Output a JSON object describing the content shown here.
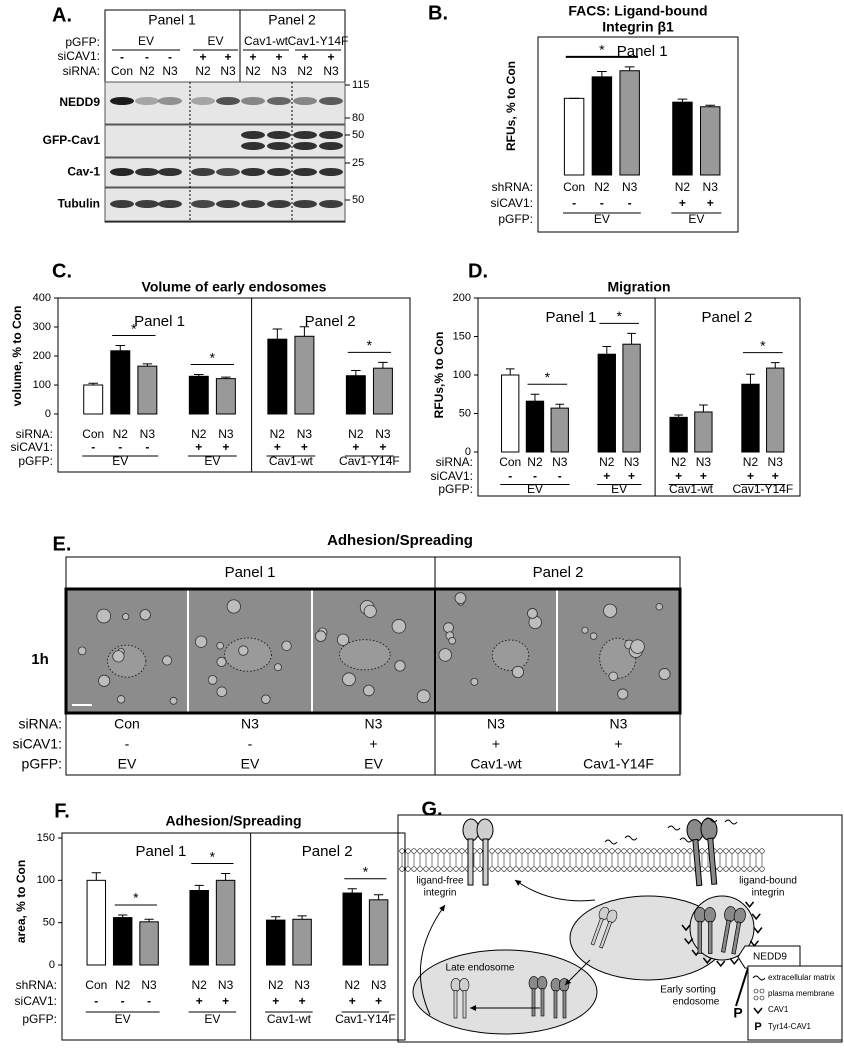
{
  "letters": [
    "A.",
    "B.",
    "C.",
    "D.",
    "E.",
    "F.",
    "G."
  ],
  "blot": {
    "panels": [
      "Panel 1",
      "Panel 2"
    ],
    "row_labels": [
      "pGFP:",
      "siCAV1:",
      "siRNA:"
    ],
    "pgfp": [
      "EV",
      "EV",
      "Cav1-wt",
      "Cav1-Y14F"
    ],
    "sicav1": [
      "-",
      "-",
      "-",
      "+",
      "+",
      "+",
      "+",
      "+",
      "+"
    ],
    "sirna": [
      "Con",
      "N2",
      "N3",
      "N2",
      "N3",
      "N2",
      "N3",
      "N2",
      "N3"
    ],
    "proteins": [
      "NEDD9",
      "GFP-Cav1",
      "Cav-1",
      "Tubulin"
    ],
    "markers": [
      "115",
      "80",
      "50",
      "25",
      "50"
    ]
  },
  "chart_data": [
    {
      "type": "bar",
      "title": [
        "FACS: Ligand-bound",
        "Integrin β1"
      ],
      "ylabel": "RFUs, % to Con",
      "ylim": [
        0,
        180
      ],
      "panels": [
        {
          "label": "Panel 1",
          "span": 5
        }
      ],
      "row_labels": [
        "shRNA:",
        "siCAV1:",
        "pGFP:"
      ],
      "categories": [
        "Con",
        "N2",
        "N3",
        "N2",
        "N3"
      ],
      "sicav1": [
        "-",
        "-",
        "-",
        "+",
        "+"
      ],
      "pgfp": [
        {
          "label": "EV",
          "span": 3
        },
        {
          "label": "EV",
          "span": 2
        }
      ],
      "values": [
        100,
        128,
        136,
        95,
        89
      ],
      "errors": [
        0,
        7,
        5,
        4,
        2
      ],
      "colors": [
        "#ffffff",
        "#000000",
        "#999999",
        "#000000",
        "#999999"
      ],
      "significance": [
        {
          "label": "*",
          "bars": [
            0,
            2
          ]
        }
      ]
    },
    {
      "type": "bar",
      "title": [
        "Volume of early endosomes"
      ],
      "ylabel": "volume, % to Con",
      "ylim": [
        0,
        400
      ],
      "yticks": [
        0,
        100,
        200,
        300,
        400
      ],
      "panels": [
        {
          "label": "Panel 1",
          "span": 5
        },
        {
          "label": "Panel 2",
          "span": 4
        }
      ],
      "row_labels": [
        "siRNA:",
        "siCAV1:",
        "pGFP:"
      ],
      "categories": [
        "Con",
        "N2",
        "N3",
        "N2",
        "N3",
        "N2",
        "N3",
        "N2",
        "N3"
      ],
      "sicav1": [
        "-",
        "-",
        "-",
        "+",
        "+",
        "+",
        "+",
        "+",
        "+"
      ],
      "pgfp": [
        {
          "label": "EV",
          "span": 3
        },
        {
          "label": "EV",
          "span": 2
        },
        {
          "label": "Cav1-wt",
          "span": 2
        },
        {
          "label": "Cav1-Y14F",
          "span": 2
        }
      ],
      "values": [
        100,
        218,
        165,
        130,
        122,
        258,
        268,
        132,
        158
      ],
      "errors": [
        6,
        18,
        8,
        6,
        5,
        35,
        33,
        18,
        20
      ],
      "colors": [
        "#ffffff",
        "#000000",
        "#999999",
        "#000000",
        "#999999",
        "#000000",
        "#999999",
        "#000000",
        "#999999"
      ],
      "significance": [
        {
          "label": "*",
          "bars": [
            1,
            2
          ]
        },
        {
          "label": "*",
          "bars": [
            3,
            4
          ]
        },
        {
          "label": "*",
          "bars": [
            7,
            8
          ]
        }
      ]
    },
    {
      "type": "bar",
      "title": [
        "Migration"
      ],
      "ylabel": "RFUs,% to Con",
      "ylim": [
        0,
        200
      ],
      "yticks": [
        0,
        50,
        100,
        150,
        200
      ],
      "panels": [
        {
          "label": "Panel 1",
          "span": 5
        },
        {
          "label": "Panel 2",
          "span": 4
        }
      ],
      "row_labels": [
        "siRNA:",
        "siCAV1:",
        "pGFP:"
      ],
      "categories": [
        "Con",
        "N2",
        "N3",
        "N2",
        "N3",
        "N2",
        "N3",
        "N2",
        "N3"
      ],
      "sicav1": [
        "-",
        "-",
        "-",
        "+",
        "+",
        "+",
        "+",
        "+",
        "+"
      ],
      "pgfp": [
        {
          "label": "EV",
          "span": 3
        },
        {
          "label": "EV",
          "span": 2
        },
        {
          "label": "Cav1-wt",
          "span": 2
        },
        {
          "label": "Cav1-Y14F",
          "span": 2
        }
      ],
      "values": [
        100,
        66,
        57,
        127,
        140,
        45,
        52,
        88,
        109
      ],
      "errors": [
        8,
        9,
        5,
        10,
        14,
        3,
        9,
        13,
        7
      ],
      "colors": [
        "#ffffff",
        "#000000",
        "#999999",
        "#000000",
        "#999999",
        "#000000",
        "#999999",
        "#000000",
        "#999999"
      ],
      "significance": [
        {
          "label": "*",
          "bars": [
            1,
            2
          ]
        },
        {
          "label": "*",
          "bars": [
            3,
            4
          ]
        },
        {
          "label": "*",
          "bars": [
            7,
            8
          ]
        }
      ]
    },
    {
      "type": "bar",
      "title": [
        "Adhesion/Spreading"
      ],
      "ylabel": "area, % to Con",
      "ylim": [
        0,
        150
      ],
      "yticks": [
        0,
        50,
        100,
        150
      ],
      "panels": [
        {
          "label": "Panel 1",
          "span": 5
        },
        {
          "label": "Panel 2",
          "span": 4
        }
      ],
      "row_labels": [
        "shRNA:",
        "siCAV1:",
        "pGFP:"
      ],
      "categories": [
        "Con",
        "N2",
        "N3",
        "N2",
        "N3",
        "N2",
        "N3",
        "N2",
        "N3"
      ],
      "sicav1": [
        "-",
        "-",
        "-",
        "+",
        "+",
        "+",
        "+",
        "+",
        "+"
      ],
      "pgfp": [
        {
          "label": "EV",
          "span": 3
        },
        {
          "label": "EV",
          "span": 2
        },
        {
          "label": "Cav1-wt",
          "span": 2
        },
        {
          "label": "Cav1-Y14F",
          "span": 2
        }
      ],
      "values": [
        100,
        56,
        51,
        88,
        100,
        53,
        54,
        85,
        77
      ],
      "errors": [
        9,
        3,
        3,
        6,
        8,
        4,
        4,
        5,
        6
      ],
      "colors": [
        "#ffffff",
        "#000000",
        "#999999",
        "#000000",
        "#999999",
        "#000000",
        "#999999",
        "#000000",
        "#999999"
      ],
      "significance": [
        {
          "label": "*",
          "bars": [
            1,
            2
          ]
        },
        {
          "label": "*",
          "bars": [
            3,
            4
          ]
        },
        {
          "label": "*",
          "bars": [
            7,
            8
          ]
        }
      ]
    }
  ],
  "imaging": {
    "title": "Adhesion/Spreading",
    "panels": [
      "Panel 1",
      "Panel 2"
    ],
    "time": "1h",
    "row_labels": [
      "siRNA:",
      "siCAV1:",
      "pGFP:"
    ],
    "sirna": [
      "Con",
      "N3",
      "N3",
      "N3",
      "N3"
    ],
    "sicav1": [
      "-",
      "-",
      "+",
      "+",
      "+"
    ],
    "pgfp": [
      "EV",
      "EV",
      "EV",
      "Cav1-wt",
      "Cav1-Y14F"
    ]
  },
  "model": {
    "ligand_free": [
      "ligand-free",
      "integrin"
    ],
    "ligand_bound": [
      "ligand-bound",
      "integrin"
    ],
    "late": "Late endosome",
    "early": [
      "Early sorting",
      "endosome"
    ],
    "nedd9": "NEDD9",
    "p": "P",
    "legend": [
      "extracellular matrix",
      "plasma membrane",
      "CAV1",
      "Tyr14-CAV1"
    ]
  }
}
